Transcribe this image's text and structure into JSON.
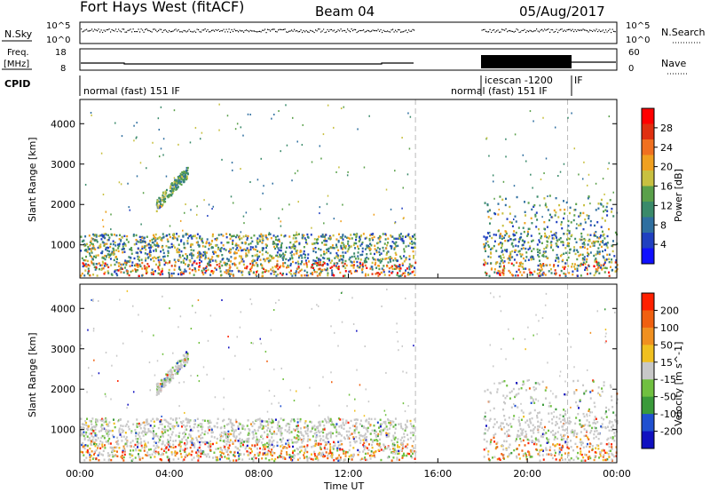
{
  "header": {
    "station": "Fort Hays West (fitACF)",
    "beam": "Beam 04",
    "date": "05/Aug/2017"
  },
  "panels": {
    "nsky": {
      "label": "N.Sky",
      "ticks": [
        "10^5",
        "10^0"
      ],
      "right_label": "N.Search",
      "right_ticks": [
        "10^5",
        "10^0"
      ]
    },
    "freq": {
      "label_line1": "Freq.",
      "label_line2": "[MHz]",
      "ticks": [
        "18",
        "8"
      ],
      "right_label": "Nave",
      "right_ticks": [
        "60",
        "0"
      ]
    },
    "cpid": {
      "label": "CPID",
      "segments": [
        "normal (fast) 151 IF",
        "normal (fast) 151 IF",
        "icescan -1200",
        "IF"
      ]
    }
  },
  "chart_data": [
    {
      "type": "heatmap",
      "title": "Power [dB]",
      "ylabel": "Slant Range [km]",
      "xlabel": "Time UT",
      "x_ticks": [
        "00:00",
        "04:00",
        "08:00",
        "12:00",
        "16:00",
        "20:00",
        "00:00"
      ],
      "x_tick_values": [
        0,
        4,
        8,
        12,
        16,
        20,
        24
      ],
      "xlim": [
        0,
        24
      ],
      "y_ticks": [
        "1000",
        "2000",
        "3000",
        "4000"
      ],
      "y_tick_values": [
        1000,
        2000,
        3000,
        4000
      ],
      "ylim": [
        180,
        4600
      ],
      "colorbar": {
        "label": "Power [dB]",
        "ticks": [
          "4",
          "8",
          "12",
          "16",
          "20",
          "24",
          "28"
        ],
        "colors": [
          "#1010ff",
          "#2040c0",
          "#2f6fa0",
          "#3a8a6a",
          "#5aa04a",
          "#c8c040",
          "#f0a020",
          "#f07020",
          "#e03010",
          "#ff0000"
        ]
      },
      "data_gap_hours": [
        15.0,
        18.0
      ],
      "vertical_marker_hours": [
        15.0,
        21.8
      ]
    },
    {
      "type": "heatmap",
      "title": "Velocity [m s^-1]",
      "ylabel": "Slant Range [km]",
      "xlabel": "Time UT",
      "x_ticks": [
        "00:00",
        "04:00",
        "08:00",
        "12:00",
        "16:00",
        "20:00",
        "00:00"
      ],
      "x_tick_values": [
        0,
        4,
        8,
        12,
        16,
        20,
        24
      ],
      "xlim": [
        0,
        24
      ],
      "y_ticks": [
        "1000",
        "2000",
        "3000",
        "4000"
      ],
      "y_tick_values": [
        1000,
        2000,
        3000,
        4000
      ],
      "ylim": [
        180,
        4600
      ],
      "colorbar": {
        "label": "Velocity [m s^-1]",
        "ticks": [
          "200",
          "100",
          "50",
          "15",
          "-15",
          "-50",
          "-100",
          "-200"
        ],
        "colors": [
          "#1010c0",
          "#2050d0",
          "#3a9a3a",
          "#70c040",
          "#c8c8c8",
          "#f0c020",
          "#f09020",
          "#f06010",
          "#ff2000"
        ]
      },
      "data_gap_hours": [
        15.0,
        18.0
      ],
      "vertical_marker_hours": [
        15.0,
        21.8
      ]
    }
  ]
}
